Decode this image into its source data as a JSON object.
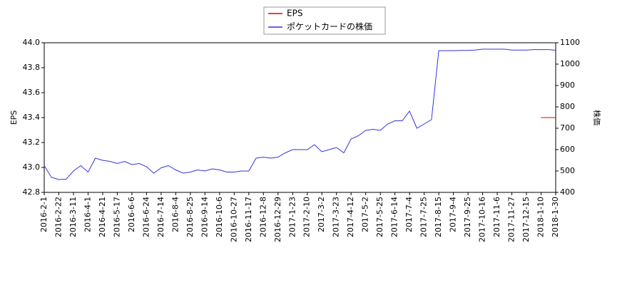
{
  "chart_data": {
    "type": "line",
    "categories": [
      "2016-2-1",
      null,
      "2016-2-22",
      null,
      "2016-3-11",
      null,
      "2016-4-1",
      null,
      "2016-4-21",
      null,
      "2016-5-17",
      null,
      "2016-6-6",
      null,
      "2016-6-24",
      null,
      "2016-7-14",
      null,
      "2016-8-4",
      null,
      "2016-8-25",
      null,
      "2016-9-14",
      null,
      "2016-10-6",
      null,
      "2016-10-27",
      null,
      "2016-11-17",
      null,
      "2016-12-8",
      null,
      "2016-12-29",
      null,
      "2017-1-23",
      null,
      "2017-2-10",
      null,
      "2017-3-2",
      null,
      "2017-3-23",
      null,
      "2017-4-12",
      null,
      "2017-5-2",
      null,
      "2017-5-25",
      null,
      "2017-6-14",
      null,
      "2017-7-4",
      null,
      "2017-7-25",
      null,
      "2017-8-15",
      null,
      "2017-9-4",
      null,
      "2017-9-25",
      null,
      "2017-10-16",
      null,
      "2017-11-6",
      null,
      "2017-11-27",
      null,
      "2017-12-15",
      null,
      "2018-1-10",
      null,
      "2018-1-30"
    ],
    "series": [
      {
        "name": "EPS",
        "color": "#dd0000",
        "axis": "y",
        "values": [
          null,
          null,
          null,
          null,
          null,
          null,
          null,
          null,
          null,
          null,
          null,
          null,
          null,
          null,
          null,
          null,
          null,
          null,
          null,
          null,
          null,
          null,
          null,
          null,
          null,
          null,
          null,
          null,
          null,
          null,
          null,
          null,
          null,
          null,
          null,
          null,
          null,
          null,
          null,
          null,
          null,
          null,
          null,
          null,
          null,
          null,
          null,
          null,
          null,
          null,
          null,
          null,
          null,
          null,
          null,
          null,
          null,
          null,
          null,
          null,
          null,
          null,
          null,
          null,
          null,
          null,
          null,
          null,
          43.4,
          43.4,
          43.4
        ]
      },
      {
        "name": "ポケットカードの株価",
        "color": "#3333dd",
        "axis": "y2",
        "values": [
          525,
          470,
          460,
          462,
          500,
          525,
          495,
          560,
          550,
          545,
          535,
          545,
          530,
          535,
          520,
          490,
          515,
          525,
          505,
          490,
          495,
          505,
          500,
          510,
          505,
          495,
          495,
          500,
          500,
          560,
          565,
          560,
          565,
          585,
          600,
          600,
          600,
          623,
          590,
          600,
          610,
          585,
          650,
          665,
          690,
          695,
          690,
          720,
          735,
          735,
          780,
          700,
          720,
          740,
          1063,
          1063,
          1063,
          1064,
          1064,
          1066,
          1070,
          1070,
          1070,
          1070,
          1066,
          1066,
          1066,
          1068,
          1068,
          1068,
          1065
        ]
      }
    ],
    "ylabel": "EPS",
    "y2label": "株価",
    "ylim": [
      42.8,
      44.0
    ],
    "yticks": [
      42.8,
      {
        "value": 43,
        "label": "43.0"
      },
      43.2,
      43.4,
      43.6,
      43.8,
      {
        "value": 44,
        "label": "44.0"
      }
    ],
    "y2lim": [
      400,
      1100
    ],
    "y2ticks": [
      400,
      500,
      600,
      700,
      800,
      900,
      1000,
      1100
    ],
    "legend": "top"
  }
}
